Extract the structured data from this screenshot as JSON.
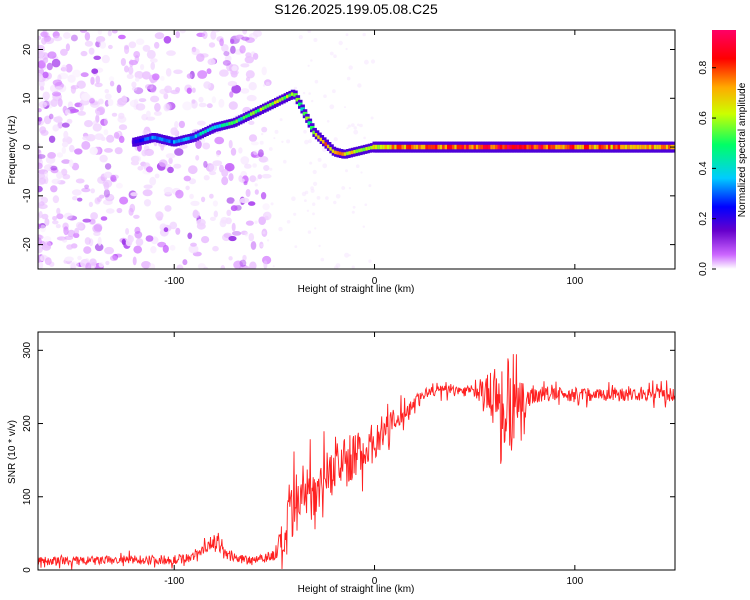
{
  "figure_title": "S126.2025.199.05.08.C25",
  "chart_data": [
    {
      "type": "heatmap",
      "title": "S126.2025.199.05.08.C25",
      "xlabel": "Height of straight line (km)",
      "ylabel": "Frequency (Hz)",
      "xlim": [
        -168,
        150
      ],
      "ylim": [
        -25,
        24
      ],
      "x_ticks": [
        -100,
        0,
        100
      ],
      "x_tick_labels": [
        "-100",
        "0",
        "100"
      ],
      "y_ticks": [
        -20,
        -10,
        0,
        10,
        20
      ],
      "y_tick_labels": [
        "-20",
        "-10",
        "0",
        "10",
        "20"
      ],
      "grid": false,
      "colorbar": {
        "label": "Normalized spectral amplitude",
        "range": [
          0,
          0.95
        ],
        "ticks": [
          0.0,
          0.2,
          0.4,
          0.6,
          0.8
        ],
        "tick_labels": [
          "0.0",
          "0.2",
          "0.4",
          "0.6",
          "0.8"
        ],
        "colormap": [
          "#ffffff",
          "#cc66ff",
          "#6600cc",
          "#0000ff",
          "#00ccff",
          "#00ff66",
          "#ccff00",
          "#ffaa00",
          "#ff0000",
          "#ff0066"
        ]
      },
      "ridge": {
        "description_points_x": [
          -120,
          -110,
          -100,
          -90,
          -80,
          -70,
          -60,
          -50,
          -40,
          -35,
          -30,
          -25,
          -20,
          -15,
          -10,
          -5,
          0,
          10,
          20,
          40,
          60,
          80,
          100,
          120,
          150
        ],
        "frequency": [
          1,
          2,
          1,
          2,
          4,
          5,
          7,
          9,
          11,
          7,
          3,
          1,
          -1,
          -1.5,
          -1,
          -0.5,
          0,
          0,
          0,
          0,
          0,
          0,
          0,
          0,
          0
        ],
        "amplitude": [
          0.3,
          0.4,
          0.4,
          0.45,
          0.5,
          0.55,
          0.6,
          0.65,
          0.6,
          0.55,
          0.7,
          0.8,
          0.8,
          0.75,
          0.7,
          0.7,
          0.7,
          0.8,
          0.85,
          0.85,
          0.9,
          0.9,
          0.85,
          0.8,
          0.8
        ]
      }
    },
    {
      "type": "line",
      "xlabel": "Height of straight line (km)",
      "ylabel": "SNR (10 * v/v)",
      "xlim": [
        -168,
        150
      ],
      "ylim": [
        0,
        325
      ],
      "x_ticks": [
        -100,
        0,
        100
      ],
      "x_tick_labels": [
        "-100",
        "0",
        "100"
      ],
      "y_ticks": [
        0,
        100,
        200,
        300
      ],
      "y_tick_labels": [
        "0",
        "100",
        "200",
        "300"
      ],
      "grid": false,
      "color": "#ff2020",
      "series": [
        {
          "x": [
            -168,
            -150,
            -120,
            -100,
            -90,
            -85,
            -80,
            -75,
            -70,
            -60,
            -50,
            -45,
            -40,
            -35,
            -30,
            -25,
            -20,
            -15,
            -10,
            -5,
            0,
            5,
            10,
            15,
            20,
            25,
            30,
            40,
            50,
            55,
            60,
            65,
            70,
            75,
            80,
            90,
            100,
            110,
            120,
            130,
            140,
            150
          ],
          "y": [
            12,
            12,
            14,
            14,
            18,
            30,
            40,
            25,
            15,
            15,
            20,
            40,
            80,
            100,
            110,
            130,
            140,
            150,
            155,
            165,
            175,
            190,
            200,
            215,
            230,
            240,
            245,
            245,
            245,
            240,
            240,
            220,
            215,
            230,
            240,
            240,
            240,
            240,
            240,
            240,
            240,
            240
          ],
          "band": [
            8,
            8,
            8,
            8,
            8,
            10,
            12,
            10,
            8,
            8,
            10,
            45,
            60,
            55,
            45,
            40,
            40,
            40,
            40,
            35,
            35,
            30,
            25,
            15,
            12,
            10,
            10,
            10,
            10,
            25,
            60,
            70,
            55,
            30,
            15,
            12,
            12,
            12,
            12,
            12,
            12,
            12
          ]
        }
      ]
    }
  ]
}
